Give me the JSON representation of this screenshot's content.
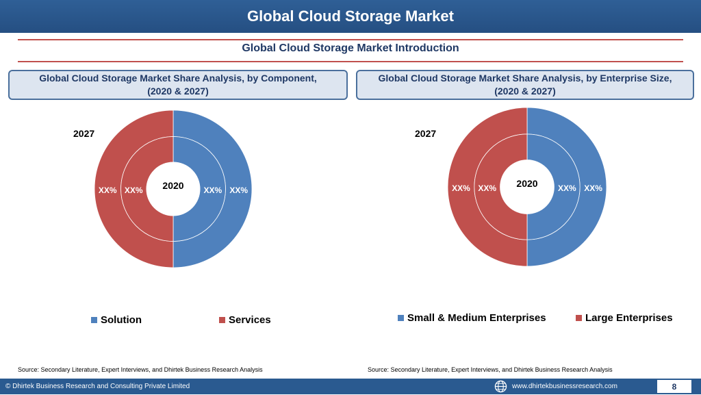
{
  "header": {
    "title": "Global Cloud Storage Market"
  },
  "subtitle": "Global Cloud Storage Market  Introduction",
  "colors": {
    "blue": "#4f81bd",
    "red": "#c0504d",
    "navy": "#1f3864"
  },
  "panels": [
    {
      "title_line1": "Global Cloud Storage Market  Share Analysis, by Component,",
      "title_line2": "(2020 & 2027)",
      "outer_year": "2027",
      "inner_year": "2020",
      "legend": [
        {
          "label": "Solution",
          "color": "#4f81bd"
        },
        {
          "label": "Services",
          "color": "#c0504d"
        }
      ],
      "source": "Source: Secondary Literature, Expert Interviews, and Dhirtek Business Research Analysis"
    },
    {
      "title_line1": "Global Cloud Storage Market  Share Analysis, by Enterprise Size,",
      "title_line2": "(2020 & 2027)",
      "outer_year": "2027",
      "inner_year": "2020",
      "legend": [
        {
          "label": "Small & Medium Enterprises",
          "color": "#4f81bd"
        },
        {
          "label": "Large Enterprises",
          "color": "#c0504d"
        }
      ],
      "source": "Source: Secondary Literature, Expert Interviews, and Dhirtek Business Research Analysis"
    }
  ],
  "chart_data": [
    {
      "type": "pie",
      "subtype": "double-donut",
      "rings": [
        {
          "name": "2027",
          "categories": [
            "Solution",
            "Services"
          ],
          "values": [
            50,
            50
          ],
          "labels": [
            "XX%",
            "XX%"
          ]
        },
        {
          "name": "2020",
          "categories": [
            "Solution",
            "Services"
          ],
          "values": [
            50,
            50
          ],
          "labels": [
            "XX%",
            "XX%"
          ]
        }
      ]
    },
    {
      "type": "pie",
      "subtype": "double-donut",
      "rings": [
        {
          "name": "2027",
          "categories": [
            "Small & Medium Enterprises",
            "Large Enterprises"
          ],
          "values": [
            50,
            50
          ],
          "labels": [
            "XX%",
            "XX%"
          ]
        },
        {
          "name": "2020",
          "categories": [
            "Small & Medium Enterprises",
            "Large Enterprises"
          ],
          "values": [
            50,
            50
          ],
          "labels": [
            "XX%",
            "XX%"
          ]
        }
      ]
    }
  ],
  "footer": {
    "copyright": "© Dhirtek Business Research and Consulting Private Limited",
    "url": "www.dhirtekbusinessresearch.com",
    "page": "8"
  }
}
